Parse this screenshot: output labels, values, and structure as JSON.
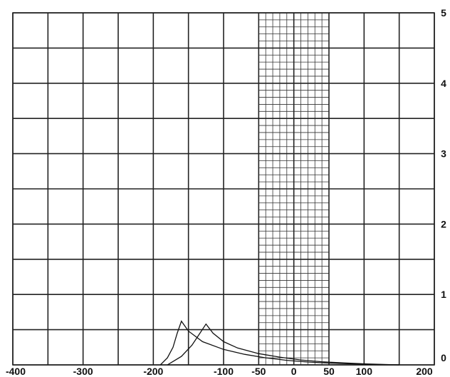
{
  "chart_data": {
    "type": "line",
    "title": "",
    "xlabel": "",
    "ylabel": "",
    "xlim": [
      -400,
      200
    ],
    "ylim": [
      0,
      5
    ],
    "grid": true,
    "x_major_step": 50,
    "y_major_step": 0.5,
    "fine_grid_region": {
      "x": [
        -50,
        50
      ],
      "x_step": 10,
      "y_step": 0.1
    },
    "x_ticks": [
      -400,
      -300,
      -200,
      -100,
      -50,
      0,
      50,
      100,
      200
    ],
    "x_tick_labels": [
      "-400",
      "-300",
      "-200",
      "-100",
      "-50",
      "0",
      "50",
      "100",
      "200"
    ],
    "y_ticks": [
      0,
      1,
      2,
      3,
      4,
      5
    ],
    "y_tick_labels": [
      "0",
      "1",
      "2",
      "3",
      "4",
      "5"
    ],
    "y_axis_side": "right",
    "series": [
      {
        "x": [
          -190,
          -180,
          -172,
          -166,
          -160,
          -150,
          -130,
          -100,
          -70,
          -40,
          -10,
          20,
          50,
          80,
          100,
          120,
          150
        ],
        "y": [
          0,
          0.1,
          0.25,
          0.45,
          0.62,
          0.48,
          0.33,
          0.22,
          0.15,
          0.1,
          0.065,
          0.04,
          0.025,
          0.015,
          0.01,
          0.005,
          0
        ]
      },
      {
        "x": [
          -180,
          -160,
          -145,
          -135,
          -125,
          -115,
          -100,
          -80,
          -50,
          -20,
          10,
          40,
          70,
          100,
          120,
          150
        ],
        "y": [
          0,
          0.12,
          0.28,
          0.43,
          0.58,
          0.45,
          0.33,
          0.24,
          0.16,
          0.11,
          0.07,
          0.045,
          0.028,
          0.015,
          0.008,
          0
        ]
      }
    ]
  }
}
